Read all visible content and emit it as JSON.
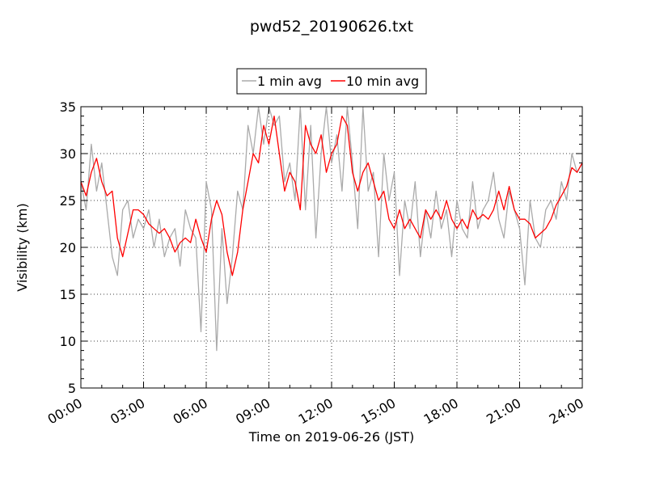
{
  "chart_data": {
    "type": "line",
    "title": "pwd52_20190626.txt",
    "xlabel": "Time on 2019-06-26 (JST)",
    "ylabel": "Visibility (km)",
    "xlim": [
      "00:00",
      "24:00"
    ],
    "ylim": [
      5,
      35
    ],
    "x_ticks": [
      "00:00",
      "03:00",
      "06:00",
      "09:00",
      "12:00",
      "15:00",
      "18:00",
      "21:00",
      "24:00"
    ],
    "y_ticks": [
      5,
      10,
      15,
      20,
      25,
      30,
      35
    ],
    "grid": true,
    "legend": {
      "placement": "top-center"
    },
    "x_units": "hours",
    "series": [
      {
        "name": "1 min avg",
        "color": "#aaaaaa",
        "x": [
          0,
          0.25,
          0.5,
          0.75,
          1,
          1.25,
          1.5,
          1.75,
          2,
          2.25,
          2.5,
          2.75,
          3,
          3.25,
          3.5,
          3.75,
          4,
          4.25,
          4.5,
          4.75,
          5,
          5.25,
          5.5,
          5.75,
          6,
          6.25,
          6.5,
          6.75,
          7,
          7.25,
          7.5,
          7.75,
          8,
          8.25,
          8.5,
          8.75,
          9,
          9.25,
          9.5,
          9.75,
          10,
          10.25,
          10.5,
          10.75,
          11,
          11.25,
          11.5,
          11.75,
          12,
          12.25,
          12.5,
          12.75,
          13,
          13.25,
          13.5,
          13.75,
          14,
          14.25,
          14.5,
          14.75,
          15,
          15.25,
          15.5,
          15.75,
          16,
          16.25,
          16.5,
          16.75,
          17,
          17.25,
          17.5,
          17.75,
          18,
          18.25,
          18.5,
          18.75,
          19,
          19.25,
          19.5,
          19.75,
          20,
          20.25,
          20.5,
          20.75,
          21,
          21.25,
          21.5,
          21.75,
          22,
          22.25,
          22.5,
          22.75,
          23,
          23.25,
          23.5,
          23.75,
          24
        ],
        "values": [
          27,
          24,
          31,
          26,
          29,
          24,
          19,
          17,
          24,
          25,
          21,
          23,
          22,
          24,
          20,
          23,
          19,
          21,
          22,
          18,
          24,
          22,
          21,
          11,
          27,
          24,
          9,
          22,
          14,
          19,
          26,
          24,
          33,
          30,
          35,
          31,
          35,
          33,
          34,
          27,
          29,
          25,
          35,
          24,
          33,
          21,
          30,
          35,
          29,
          32,
          26,
          35,
          29,
          22,
          35,
          26,
          28,
          19,
          30,
          25,
          28,
          17,
          25,
          22,
          27,
          19,
          24,
          21,
          26,
          22,
          24,
          19,
          25,
          22,
          21,
          27,
          22,
          24,
          25,
          28,
          23,
          21,
          26,
          24,
          22,
          16,
          25,
          21,
          20,
          24,
          25,
          23,
          27,
          25,
          30,
          28,
          29
        ]
      },
      {
        "name": "10 min avg",
        "color": "#ff0000",
        "x": [
          0,
          0.25,
          0.5,
          0.75,
          1,
          1.25,
          1.5,
          1.75,
          2,
          2.25,
          2.5,
          2.75,
          3,
          3.25,
          3.5,
          3.75,
          4,
          4.25,
          4.5,
          4.75,
          5,
          5.25,
          5.5,
          5.75,
          6,
          6.25,
          6.5,
          6.75,
          7,
          7.25,
          7.5,
          7.75,
          8,
          8.25,
          8.5,
          8.75,
          9,
          9.25,
          9.5,
          9.75,
          10,
          10.25,
          10.5,
          10.75,
          11,
          11.25,
          11.5,
          11.75,
          12,
          12.25,
          12.5,
          12.75,
          13,
          13.25,
          13.5,
          13.75,
          14,
          14.25,
          14.5,
          14.75,
          15,
          15.25,
          15.5,
          15.75,
          16,
          16.25,
          16.5,
          16.75,
          17,
          17.25,
          17.5,
          17.75,
          18,
          18.25,
          18.5,
          18.75,
          19,
          19.25,
          19.5,
          19.75,
          20,
          20.25,
          20.5,
          20.75,
          21,
          21.25,
          21.5,
          21.75,
          22,
          22.25,
          22.5,
          22.75,
          23,
          23.25,
          23.5,
          23.75,
          24
        ],
        "values": [
          27,
          25.5,
          28,
          29.5,
          27,
          25.5,
          26,
          21,
          19,
          21.5,
          24,
          24,
          23.5,
          22.5,
          22,
          21.5,
          22,
          21,
          19.5,
          20.5,
          21,
          20.5,
          23,
          21,
          19.5,
          23,
          25,
          23.5,
          19.5,
          17,
          19.5,
          24,
          27,
          30,
          29,
          33,
          31,
          34,
          30,
          26,
          28,
          27,
          24,
          33,
          31,
          30,
          32,
          28,
          30,
          31,
          34,
          33,
          28,
          26,
          28,
          29,
          27,
          25,
          26,
          23,
          22,
          24,
          22,
          23,
          22,
          21,
          24,
          23,
          24,
          23,
          25,
          23,
          22,
          23,
          22,
          24,
          23,
          23.5,
          23,
          24,
          26,
          24,
          26.5,
          24,
          23,
          23,
          22.5,
          21,
          21.5,
          22,
          23,
          24.5,
          25.5,
          26.5,
          28.5,
          28,
          29
        ]
      }
    ]
  }
}
